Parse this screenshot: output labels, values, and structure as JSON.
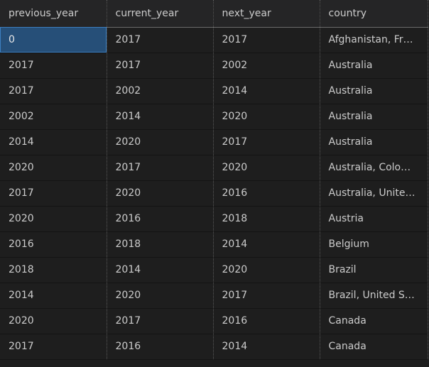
{
  "columns": [
    "previous_year",
    "current_year",
    "next_year",
    "country"
  ],
  "rows": [
    [
      "0",
      "2017",
      "2017",
      "Afghanistan, Fr…"
    ],
    [
      "2017",
      "2017",
      "2002",
      "Australia"
    ],
    [
      "2017",
      "2002",
      "2014",
      "Australia"
    ],
    [
      "2002",
      "2014",
      "2020",
      "Australia"
    ],
    [
      "2014",
      "2020",
      "2017",
      "Australia"
    ],
    [
      "2020",
      "2017",
      "2020",
      "Australia, Colo…"
    ],
    [
      "2017",
      "2020",
      "2016",
      "Australia, Unite…"
    ],
    [
      "2020",
      "2016",
      "2018",
      "Austria"
    ],
    [
      "2016",
      "2018",
      "2014",
      "Belgium"
    ],
    [
      "2018",
      "2014",
      "2020",
      "Brazil"
    ],
    [
      "2014",
      "2020",
      "2017",
      "Brazil, United S…"
    ],
    [
      "2020",
      "2017",
      "2016",
      "Canada"
    ],
    [
      "2017",
      "2016",
      "2014",
      "Canada"
    ]
  ],
  "selected_cell": {
    "row": 0,
    "col": 0
  },
  "colors": {
    "background": "#1e1e1e",
    "header_background": "#252526",
    "text": "#cccccc",
    "selection": "#264f78"
  }
}
